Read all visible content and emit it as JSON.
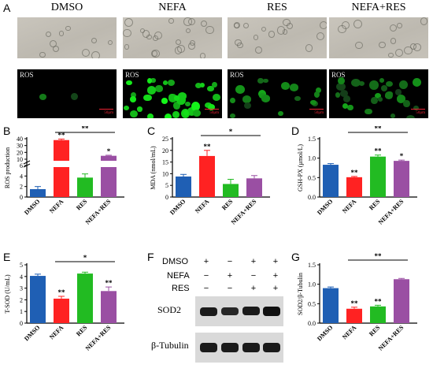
{
  "panels": {
    "A": "A",
    "B": "B",
    "C": "C",
    "D": "D",
    "E": "E",
    "F": "F",
    "G": "G"
  },
  "groups": [
    "DMSO",
    "NEFA",
    "RES",
    "NEFA+RES"
  ],
  "microscopy": {
    "fluor_label": "ROS",
    "scale_bar": "50μm"
  },
  "colors": {
    "DMSO": "#1f5fb4",
    "NEFA": "#ff2222",
    "RES": "#22bb22",
    "NEFA+RES": "#9a4fa3"
  },
  "western": {
    "treatments": [
      "DMSO",
      "NEFA",
      "RES"
    ],
    "signs": [
      [
        "+",
        "−",
        "+",
        "+"
      ],
      [
        "−",
        "+",
        "−",
        "+"
      ],
      [
        "−",
        "−",
        "+",
        "+"
      ]
    ],
    "bands": [
      "SOD2",
      "β-Tubulin"
    ]
  },
  "chart_data": [
    {
      "panel": "B",
      "type": "bar",
      "ylabel": "ROS production",
      "categories": [
        "DMSO",
        "NEFA",
        "RES",
        "NEFA+RES"
      ],
      "values": [
        1.5,
        38,
        3.7,
        15
      ],
      "errors": [
        0.5,
        1.5,
        0.7,
        0.8
      ],
      "axis_break": [
        6,
        10
      ],
      "yticks": [
        "0",
        "2",
        "4",
        "6",
        "10",
        "20",
        "30",
        "40"
      ],
      "annotations": [
        "",
        "**",
        "",
        "*"
      ],
      "bracket": {
        "from": 1,
        "to": 3,
        "label": "**"
      }
    },
    {
      "panel": "C",
      "type": "bar",
      "ylabel": "MDA (nmol/mL)",
      "categories": [
        "DMSO",
        "NEFA",
        "RES",
        "NEFA+RES"
      ],
      "values": [
        8.8,
        17.6,
        5.6,
        8.0
      ],
      "errors": [
        0.9,
        2.4,
        2.0,
        1.2
      ],
      "ylim": [
        0,
        25
      ],
      "yticks": [
        "0",
        "5",
        "10",
        "15",
        "20",
        "25"
      ],
      "annotations": [
        "",
        "**",
        "",
        ""
      ],
      "bracket": {
        "from": 1,
        "to": 3,
        "label": "*"
      }
    },
    {
      "panel": "D",
      "type": "bar",
      "ylabel": "GSH-PX (μmol/L)",
      "categories": [
        "DMSO",
        "NEFA",
        "RES",
        "NEFA+RES"
      ],
      "values": [
        0.83,
        0.51,
        1.04,
        0.93
      ],
      "errors": [
        0.03,
        0.02,
        0.04,
        0.02
      ],
      "ylim": [
        0,
        1.5
      ],
      "yticks": [
        "0.0",
        "0.5",
        "1.0",
        "1.5"
      ],
      "annotations": [
        "",
        "**",
        "**",
        "*"
      ],
      "bracket": {
        "from": 1,
        "to": 3,
        "label": "**"
      }
    },
    {
      "panel": "E",
      "type": "bar",
      "ylabel": "T-SOD (U/mL)",
      "categories": [
        "DMSO",
        "NEFA",
        "RES",
        "NEFA+RES"
      ],
      "values": [
        4.05,
        2.1,
        4.25,
        2.75
      ],
      "errors": [
        0.15,
        0.2,
        0.12,
        0.35
      ],
      "ylim": [
        0,
        5
      ],
      "yticks": [
        "0",
        "1",
        "2",
        "3",
        "4",
        "5"
      ],
      "annotations": [
        "",
        "**",
        "",
        "**"
      ],
      "bracket": {
        "from": 1,
        "to": 3,
        "label": "*"
      }
    },
    {
      "panel": "G",
      "type": "bar",
      "ylabel": "SOD2/β-Tubulin",
      "categories": [
        "DMSO",
        "NEFA",
        "RES",
        "NEFA+RES"
      ],
      "values": [
        0.9,
        0.37,
        0.43,
        1.13
      ],
      "errors": [
        0.03,
        0.04,
        0.03,
        0.02
      ],
      "ylim": [
        0,
        1.5
      ],
      "yticks": [
        "0.0",
        "0.5",
        "1.0",
        "1.5"
      ],
      "annotations": [
        "",
        "**",
        "**",
        ""
      ],
      "bracket": {
        "from": 1,
        "to": 3,
        "label": "**"
      }
    }
  ]
}
